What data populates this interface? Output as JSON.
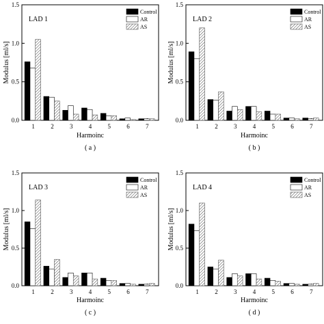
{
  "panels": [
    {
      "panel_label": "( a )",
      "chart_data": {
        "type": "bar",
        "title": "LAD 1",
        "xlabel": "Harmoinc",
        "ylabel": "Modulus [ml/s]",
        "categories": [
          "1",
          "2",
          "3",
          "4",
          "5",
          "6",
          "7"
        ],
        "ylim": [
          0,
          1.5
        ],
        "yticks": [
          "0.0",
          "0.5",
          "1.0",
          "1.5"
        ],
        "legend_position": "top-right",
        "series": [
          {
            "name": "Control",
            "values": [
              0.76,
              0.31,
              0.13,
              0.16,
              0.09,
              0.02,
              0.02
            ]
          },
          {
            "name": "AR",
            "values": [
              0.68,
              0.3,
              0.19,
              0.14,
              0.06,
              0.03,
              0.02
            ]
          },
          {
            "name": "AS",
            "values": [
              1.05,
              0.25,
              0.08,
              0.07,
              0.06,
              0.01,
              0.02
            ]
          }
        ]
      }
    },
    {
      "panel_label": "( b )",
      "chart_data": {
        "type": "bar",
        "title": "LAD 2",
        "xlabel": "Harmoinc",
        "ylabel": "Modulus [ml/s]",
        "categories": [
          "1",
          "2",
          "3",
          "4",
          "5",
          "6",
          "7"
        ],
        "ylim": [
          0,
          1.5
        ],
        "yticks": [
          "0.0",
          "0.5",
          "1.0",
          "1.5"
        ],
        "legend_position": "top-right",
        "series": [
          {
            "name": "Control",
            "values": [
              0.89,
              0.27,
              0.12,
              0.18,
              0.12,
              0.03,
              0.03
            ]
          },
          {
            "name": "AR",
            "values": [
              0.8,
              0.26,
              0.18,
              0.18,
              0.08,
              0.03,
              0.02
            ]
          },
          {
            "name": "AS",
            "values": [
              1.2,
              0.37,
              0.14,
              0.11,
              0.08,
              0.02,
              0.03
            ]
          }
        ]
      }
    },
    {
      "panel_label": "( c )",
      "chart_data": {
        "type": "bar",
        "title": "LAD 3",
        "xlabel": "Harmoinc",
        "ylabel": "Modulus [ml/s]",
        "categories": [
          "1",
          "2",
          "3",
          "4",
          "5",
          "6",
          "7"
        ],
        "ylim": [
          0,
          1.5
        ],
        "yticks": [
          "0.0",
          "0.5",
          "1.0",
          "1.5"
        ],
        "legend_position": "top-right",
        "series": [
          {
            "name": "Control",
            "values": [
              0.85,
              0.26,
              0.11,
              0.17,
              0.1,
              0.03,
              0.02
            ]
          },
          {
            "name": "AR",
            "values": [
              0.76,
              0.22,
              0.17,
              0.17,
              0.07,
              0.03,
              0.02
            ]
          },
          {
            "name": "AS",
            "values": [
              1.14,
              0.35,
              0.13,
              0.09,
              0.07,
              0.02,
              0.03
            ]
          }
        ]
      }
    },
    {
      "panel_label": "( d )",
      "chart_data": {
        "type": "bar",
        "title": "LAD 4",
        "xlabel": "Harmoinc",
        "ylabel": "Modulus [ml/s]",
        "categories": [
          "1",
          "2",
          "3",
          "4",
          "5",
          "6",
          "7"
        ],
        "ylim": [
          0,
          1.5
        ],
        "yticks": [
          "0.0",
          "0.5",
          "1.0",
          "1.5"
        ],
        "legend_position": "top-right",
        "series": [
          {
            "name": "Control",
            "values": [
              0.82,
              0.25,
              0.11,
              0.16,
              0.1,
              0.03,
              0.02
            ]
          },
          {
            "name": "AR",
            "values": [
              0.73,
              0.22,
              0.16,
              0.16,
              0.07,
              0.03,
              0.02
            ]
          },
          {
            "name": "AS",
            "values": [
              1.1,
              0.34,
              0.13,
              0.09,
              0.06,
              0.02,
              0.03
            ]
          }
        ]
      }
    }
  ],
  "colors": {
    "control_fill": "#000000",
    "ar_fill": "#ffffff",
    "as_hatch": "#444444",
    "axis": "#000000"
  }
}
